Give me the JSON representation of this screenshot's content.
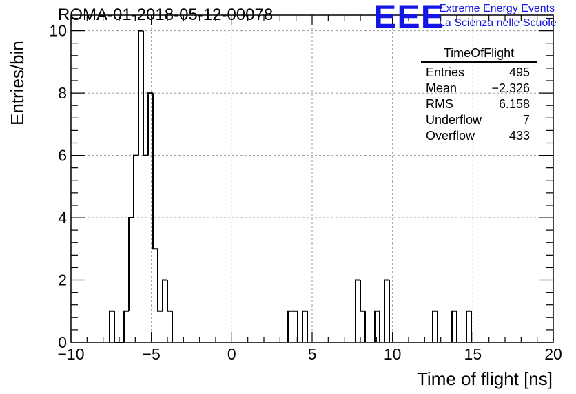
{
  "title": "ROMA-01-2018-05-12-00078",
  "logo": {
    "mark": "EEE",
    "line1": "Extreme Energy Events",
    "line2": "La Scienza nelle Scuole",
    "color": "#1515e6"
  },
  "stats_box": {
    "title": "TimeOfFlight",
    "rows": [
      {
        "label": "Entries",
        "value": "495"
      },
      {
        "label": "Mean",
        "value": "−2.326"
      },
      {
        "label": "RMS",
        "value": "6.158"
      },
      {
        "label": "Underflow",
        "value": "7"
      },
      {
        "label": "Overflow",
        "value": "433"
      }
    ]
  },
  "chart_data": {
    "type": "bar",
    "style": "step-histogram",
    "title": "ROMA-01-2018-05-12-00078",
    "xlabel": "Time of flight [ns]",
    "ylabel": "Entries/bin",
    "xlim": [
      -10,
      20
    ],
    "ylim": [
      0,
      10.5
    ],
    "bin_width": 0.3,
    "bins": [
      {
        "x": -7.6,
        "value": 1
      },
      {
        "x": -7.3,
        "value": 0
      },
      {
        "x": -7.0,
        "value": 0
      },
      {
        "x": -6.7,
        "value": 1
      },
      {
        "x": -6.4,
        "value": 4
      },
      {
        "x": -6.1,
        "value": 6
      },
      {
        "x": -5.8,
        "value": 10
      },
      {
        "x": -5.5,
        "value": 6
      },
      {
        "x": -5.2,
        "value": 8
      },
      {
        "x": -4.9,
        "value": 3
      },
      {
        "x": -4.6,
        "value": 1
      },
      {
        "x": -4.3,
        "value": 2
      },
      {
        "x": -4.0,
        "value": 1
      },
      {
        "x": 3.5,
        "value": 1
      },
      {
        "x": 3.8,
        "value": 1
      },
      {
        "x": 4.4,
        "value": 1
      },
      {
        "x": 7.7,
        "value": 2
      },
      {
        "x": 8.0,
        "value": 1
      },
      {
        "x": 8.9,
        "value": 1
      },
      {
        "x": 9.5,
        "value": 2
      },
      {
        "x": 12.5,
        "value": 1
      },
      {
        "x": 13.7,
        "value": 1
      },
      {
        "x": 14.6,
        "value": 1
      }
    ],
    "x_ticks": [
      -10,
      -5,
      0,
      5,
      10,
      15,
      20
    ],
    "x_tick_labels": [
      "−10",
      "−5",
      "0",
      "5",
      "10",
      "15",
      "20"
    ],
    "y_ticks": [
      0,
      2,
      4,
      6,
      8,
      10
    ],
    "y_tick_labels": [
      "0",
      "2",
      "4",
      "6",
      "8",
      "10"
    ],
    "grid": true,
    "line_color": "#000000",
    "grid_color": "#9a9a9a"
  }
}
